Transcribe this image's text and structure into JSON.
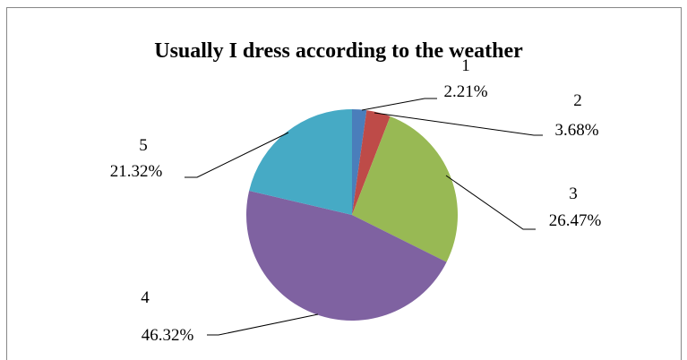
{
  "chart_data": {
    "type": "pie",
    "title": "Usually I dress according to the weather",
    "categories": [
      "1",
      "2",
      "3",
      "4",
      "5"
    ],
    "values": [
      2.21,
      3.68,
      26.47,
      46.32,
      21.32
    ],
    "value_labels": [
      "2.21%",
      "3.68%",
      "26.47%",
      "46.32%",
      "21.32%"
    ],
    "colors": [
      "#4A7EBB",
      "#BE4B48",
      "#98B954",
      "#7F62A1",
      "#46AAC5"
    ],
    "legend": "none"
  }
}
